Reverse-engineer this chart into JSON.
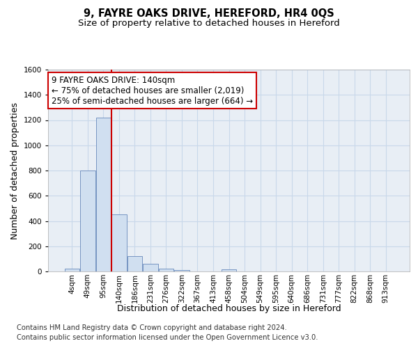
{
  "title": "9, FAYRE OAKS DRIVE, HEREFORD, HR4 0QS",
  "subtitle": "Size of property relative to detached houses in Hereford",
  "xlabel": "Distribution of detached houses by size in Hereford",
  "ylabel": "Number of detached properties",
  "footer_line1": "Contains HM Land Registry data © Crown copyright and database right 2024.",
  "footer_line2": "Contains public sector information licensed under the Open Government Licence v3.0.",
  "bar_labels": [
    "4sqm",
    "49sqm",
    "95sqm",
    "140sqm",
    "186sqm",
    "231sqm",
    "276sqm",
    "322sqm",
    "367sqm",
    "413sqm",
    "458sqm",
    "504sqm",
    "549sqm",
    "595sqm",
    "640sqm",
    "686sqm",
    "731sqm",
    "777sqm",
    "822sqm",
    "868sqm",
    "913sqm"
  ],
  "bar_values": [
    20,
    800,
    1220,
    450,
    120,
    58,
    22,
    10,
    0,
    0,
    18,
    0,
    0,
    0,
    0,
    0,
    0,
    0,
    0,
    0,
    0
  ],
  "bar_color": "#d0dff0",
  "bar_edgecolor": "#6688bb",
  "vline_x": 2.5,
  "vline_color": "#cc0000",
  "annotation_line1": "9 FAYRE OAKS DRIVE: 140sqm",
  "annotation_line2": "← 75% of detached houses are smaller (2,019)",
  "annotation_line3": "25% of semi-detached houses are larger (664) →",
  "annotation_box_edgecolor": "#cc0000",
  "ylim_max": 1600,
  "yticks": [
    0,
    200,
    400,
    600,
    800,
    1000,
    1200,
    1400,
    1600
  ],
  "grid_color": "#c8d8ea",
  "plot_bg_color": "#e8eef5",
  "title_fontsize": 10.5,
  "subtitle_fontsize": 9.5,
  "ylabel_fontsize": 9,
  "xlabel_fontsize": 9,
  "tick_fontsize": 7.5,
  "annot_fontsize": 8.5,
  "footer_fontsize": 7.2
}
